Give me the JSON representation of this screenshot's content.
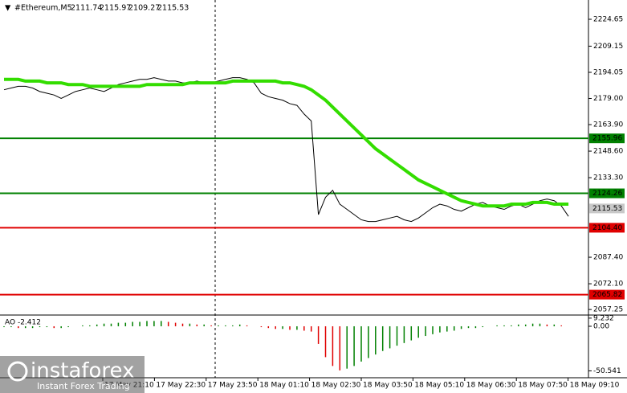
{
  "header": {
    "symbol": "#Ethereum,M5",
    "ohlc": [
      "2111.74",
      "2115.97",
      "2109.27",
      "2115.53"
    ]
  },
  "watermark": {
    "brand": "instaforex",
    "tagline": "Instant Forex Trading"
  },
  "chart_data": [
    {
      "type": "line",
      "series": [
        {
          "color": "#000000",
          "values": [
            2184,
            2185,
            2186,
            2186,
            2185,
            2183,
            2182,
            2181,
            2179,
            2181,
            2183,
            2184,
            2185,
            2184,
            2183,
            2185,
            2187,
            2188,
            2189,
            2190,
            2190,
            2191,
            2190,
            2189,
            2189,
            2188,
            2188,
            2189,
            2188,
            2188,
            2189,
            2190,
            2191,
            2191,
            2190,
            2188,
            2182,
            2180,
            2179,
            2178,
            2176,
            2175,
            2170,
            2166,
            2112,
            2122,
            2126,
            2118,
            2115,
            2112,
            2109,
            2108,
            2108,
            2109,
            2110,
            2111,
            2109,
            2108,
            2110,
            2113,
            2116,
            2118,
            2117,
            2115,
            2114,
            2116,
            2118,
            2119,
            2117,
            2116,
            2115,
            2117,
            2118,
            2116,
            2118,
            2120,
            2121,
            2120,
            2117,
            2111
          ]
        },
        {
          "color": "#33dd00",
          "values": [
            2190,
            2190,
            2190,
            2189,
            2189,
            2189,
            2188,
            2188,
            2188,
            2187,
            2187,
            2187,
            2186,
            2186,
            2186,
            2186,
            2186,
            2186,
            2186,
            2186,
            2187,
            2187,
            2187,
            2187,
            2187,
            2187,
            2188,
            2188,
            2188,
            2188,
            2188,
            2188,
            2189,
            2189,
            2189,
            2189,
            2189,
            2189,
            2189,
            2188,
            2188,
            2187,
            2186,
            2184,
            2181,
            2178,
            2174,
            2170,
            2166,
            2162,
            2158,
            2154,
            2150,
            2147,
            2144,
            2141,
            2138,
            2135,
            2132,
            2130,
            2128,
            2126,
            2124,
            2122,
            2120,
            2119,
            2118,
            2117,
            2117,
            2117,
            2117,
            2118,
            2118,
            2118,
            2119,
            2119,
            2119,
            2118,
            2118,
            2118
          ]
        }
      ],
      "levels": [
        {
          "value": 2155.96,
          "color": "#008000"
        },
        {
          "value": 2124.26,
          "color": "#008000"
        },
        {
          "value": 2104.4,
          "label": "2104.40",
          "color": "#e00000"
        },
        {
          "value": 2065.82,
          "color": "#e00000"
        }
      ],
      "last_price": {
        "value": 2115.53,
        "color": "#c8c8c8"
      },
      "ylim": [
        2054.05,
        2235.78
      ],
      "yticks": [
        2224.65,
        2209.15,
        2194.05,
        {
          "value": 2179,
          "label": "2179.00"
        },
        {
          "value": 2163.9,
          "label": "2163.90"
        },
        {
          "value": 2148.6,
          "label": "2148.60"
        },
        {
          "value": 2133.3,
          "label": "2133.30"
        },
        {
          "value": 2087.4,
          "label": "2087.40"
        },
        {
          "value": 2072.1,
          "label": "2072.10"
        },
        2057.25
      ],
      "x_labels": [
        "17 May 21:10",
        "17 May 22:30",
        "17 May 23:50",
        "18 May 01:10",
        "18 May 02:30",
        "18 May 03:50",
        "18 May 05:10",
        "18 May 06:30",
        "18 May 07:50",
        "18 May 09:10"
      ]
    },
    {
      "type": "bar",
      "title": "AO -2.412",
      "up_color": "#008000",
      "down_color": "#e00000",
      "values": [
        -1,
        -1,
        -2,
        -2,
        -2,
        -1,
        -1,
        -2,
        -2,
        -1,
        0,
        1,
        1,
        2,
        3,
        3,
        4,
        4,
        5,
        5,
        6,
        6,
        6,
        5,
        4,
        3,
        3,
        2,
        2,
        1,
        1,
        1,
        1,
        2,
        1,
        0,
        -1,
        -2,
        -3,
        -3,
        -4,
        -4,
        -5,
        -6,
        -20,
        -35,
        -45,
        -50,
        -48,
        -45,
        -40,
        -36,
        -32,
        -28,
        -25,
        -22,
        -19,
        -16,
        -13,
        -11,
        -9,
        -7,
        -6,
        -5,
        -3,
        -2,
        -2,
        -1,
        0,
        1,
        1,
        1,
        2,
        2,
        3,
        3,
        2,
        2,
        1,
        0
      ],
      "ylim": [
        -56.5,
        10
      ],
      "yticks": [
        9.232,
        {
          "value": 0,
          "label": "0.00"
        },
        -50.541
      ]
    }
  ]
}
